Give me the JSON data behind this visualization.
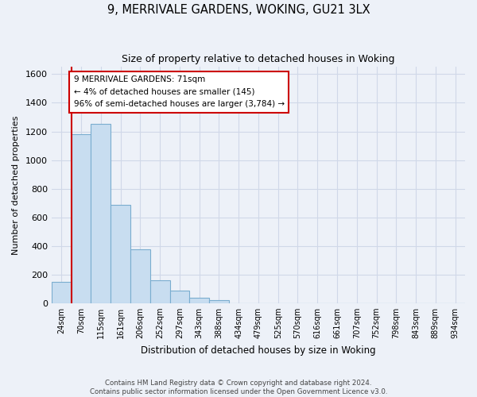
{
  "title_line1": "9, MERRIVALE GARDENS, WOKING, GU21 3LX",
  "title_line2": "Size of property relative to detached houses in Woking",
  "xlabel": "Distribution of detached houses by size in Woking",
  "ylabel": "Number of detached properties",
  "footer_line1": "Contains HM Land Registry data © Crown copyright and database right 2024.",
  "footer_line2": "Contains public sector information licensed under the Open Government Licence v3.0.",
  "bar_labels": [
    "24sqm",
    "70sqm",
    "115sqm",
    "161sqm",
    "206sqm",
    "252sqm",
    "297sqm",
    "343sqm",
    "388sqm",
    "434sqm",
    "479sqm",
    "525sqm",
    "570sqm",
    "616sqm",
    "661sqm",
    "707sqm",
    "752sqm",
    "798sqm",
    "843sqm",
    "889sqm",
    "934sqm"
  ],
  "bar_values": [
    150,
    1180,
    1255,
    685,
    375,
    160,
    90,
    35,
    20,
    0,
    0,
    0,
    0,
    0,
    0,
    0,
    0,
    0,
    0,
    0,
    0
  ],
  "bar_color": "#c8ddf0",
  "bar_edge_color": "#7aadcf",
  "property_line_color": "#cc0000",
  "annotation_title": "9 MERRIVALE GARDENS: 71sqm",
  "annotation_line1": "← 4% of detached houses are smaller (145)",
  "annotation_line2": "96% of semi-detached houses are larger (3,784) →",
  "annotation_box_color": "#ffffff",
  "annotation_box_edge_color": "#cc0000",
  "ylim": [
    0,
    1650
  ],
  "yticks": [
    0,
    200,
    400,
    600,
    800,
    1000,
    1200,
    1400,
    1600
  ],
  "grid_color": "#d0d8e8",
  "background_color": "#edf1f8"
}
